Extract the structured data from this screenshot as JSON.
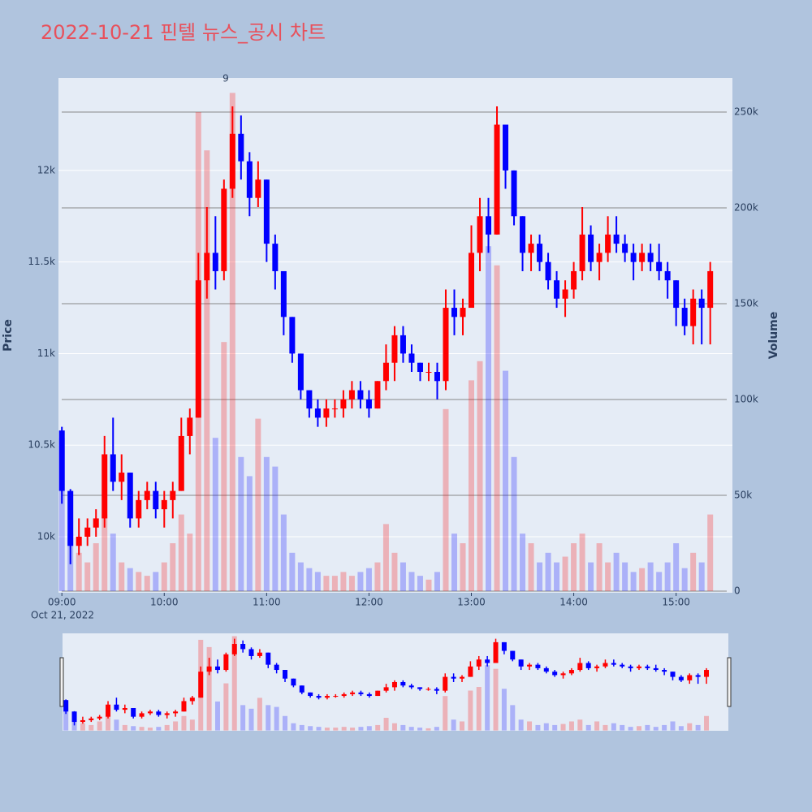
{
  "chart_data": {
    "type": "candlestick",
    "title": "2022-10-21 핀텔 뉴스_공시 차트",
    "y_title": "Price",
    "y2_title": "Volume",
    "x_date_label": "Oct 21, 2022",
    "increasing_color": "#ff0000",
    "decreasing_color": "#0000ff",
    "rangeslider": true,
    "x": [
      "2022-10-21 09:00",
      "2022-10-21 09:05",
      "2022-10-21 09:10",
      "2022-10-21 09:15",
      "2022-10-21 09:20",
      "2022-10-21 09:25",
      "2022-10-21 09:30",
      "2022-10-21 09:35",
      "2022-10-21 09:40",
      "2022-10-21 09:45",
      "2022-10-21 09:50",
      "2022-10-21 09:55",
      "2022-10-21 10:00",
      "2022-10-21 10:05",
      "2022-10-21 10:10",
      "2022-10-21 10:15",
      "2022-10-21 10:20",
      "2022-10-21 10:25",
      "2022-10-21 10:30",
      "2022-10-21 10:35",
      "2022-10-21 10:40",
      "2022-10-21 10:45",
      "2022-10-21 10:50",
      "2022-10-21 10:55",
      "2022-10-21 11:00",
      "2022-10-21 11:05",
      "2022-10-21 11:10",
      "2022-10-21 11:15",
      "2022-10-21 11:20",
      "2022-10-21 11:25",
      "2022-10-21 11:30",
      "2022-10-21 11:35",
      "2022-10-21 11:40",
      "2022-10-21 11:45",
      "2022-10-21 11:50",
      "2022-10-21 11:55",
      "2022-10-21 12:00",
      "2022-10-21 12:05",
      "2022-10-21 12:10",
      "2022-10-21 12:15",
      "2022-10-21 12:20",
      "2022-10-21 12:25",
      "2022-10-21 12:30",
      "2022-10-21 12:35",
      "2022-10-21 12:40",
      "2022-10-21 12:45",
      "2022-10-21 12:50",
      "2022-10-21 12:55",
      "2022-10-21 13:00",
      "2022-10-21 13:05",
      "2022-10-21 13:10",
      "2022-10-21 13:15",
      "2022-10-21 13:20",
      "2022-10-21 13:25",
      "2022-10-21 13:30",
      "2022-10-21 13:35",
      "2022-10-21 13:40",
      "2022-10-21 13:45",
      "2022-10-21 13:50",
      "2022-10-21 13:55",
      "2022-10-21 14:00",
      "2022-10-21 14:05",
      "2022-10-21 14:10",
      "2022-10-21 14:15",
      "2022-10-21 14:20",
      "2022-10-21 14:25",
      "2022-10-21 14:30",
      "2022-10-21 14:35",
      "2022-10-21 14:40",
      "2022-10-21 14:45",
      "2022-10-21 14:50",
      "2022-10-21 14:55",
      "2022-10-21 15:00",
      "2022-10-21 15:05",
      "2022-10-21 15:10",
      "2022-10-21 15:15",
      "2022-10-21 15:20"
    ],
    "open": [
      10580,
      10250,
      9950,
      10000,
      10050,
      10100,
      10450,
      10300,
      10350,
      10100,
      10200,
      10250,
      10150,
      10200,
      10250,
      10550,
      10650,
      11400,
      11550,
      11450,
      11900,
      12200,
      12050,
      11850,
      11950,
      11600,
      11450,
      11200,
      11000,
      10800,
      10700,
      10650,
      10700,
      10700,
      10750,
      10800,
      10750,
      10700,
      10850,
      10950,
      11100,
      11000,
      10950,
      10900,
      10900,
      10850,
      11250,
      11200,
      11250,
      11550,
      11750,
      11650,
      12250,
      12000,
      11750,
      11550,
      11600,
      11500,
      11400,
      11300,
      11350,
      11450,
      11650,
      11500,
      11550,
      11650,
      11600,
      11550,
      11500,
      11550,
      11500,
      11450,
      11400,
      11250,
      11150,
      11300,
      11250
    ],
    "high": [
      10600,
      10260,
      10100,
      10100,
      10150,
      10550,
      10650,
      10450,
      10350,
      10250,
      10300,
      10300,
      10250,
      10300,
      10650,
      10700,
      11550,
      11800,
      11750,
      11950,
      12350,
      12300,
      12100,
      12050,
      11950,
      11650,
      11450,
      11200,
      11000,
      10800,
      10750,
      10750,
      10750,
      10800,
      10850,
      10850,
      10800,
      10850,
      11050,
      11150,
      11150,
      11050,
      10950,
      10950,
      10950,
      11350,
      11350,
      11300,
      11700,
      11850,
      11850,
      12350,
      12250,
      12000,
      11750,
      11650,
      11650,
      11550,
      11450,
      11400,
      11500,
      11800,
      11700,
      11600,
      11750,
      11750,
      11650,
      11600,
      11600,
      11600,
      11600,
      11500,
      11400,
      11300,
      11350,
      11350,
      11500
    ],
    "low": [
      10180,
      9850,
      9900,
      9950,
      10000,
      10050,
      10250,
      10200,
      10050,
      10050,
      10150,
      10100,
      10050,
      10100,
      10250,
      10450,
      10650,
      11300,
      11350,
      11400,
      11850,
      11950,
      11750,
      11800,
      11500,
      11350,
      11100,
      10950,
      10750,
      10650,
      10600,
      10600,
      10650,
      10650,
      10700,
      10700,
      10650,
      10700,
      10800,
      10850,
      10950,
      10900,
      10850,
      10850,
      10750,
      10800,
      11100,
      11100,
      11250,
      11450,
      11550,
      11650,
      11900,
      11700,
      11450,
      11450,
      11450,
      11350,
      11250,
      11200,
      11300,
      11400,
      11450,
      11400,
      11500,
      11550,
      11500,
      11400,
      11450,
      11450,
      11400,
      11300,
      11150,
      11100,
      11050,
      11050,
      11050
    ],
    "close": [
      10250,
      9950,
      10000,
      10050,
      10100,
      10450,
      10300,
      10350,
      10100,
      10200,
      10250,
      10150,
      10200,
      10250,
      10550,
      10650,
      11400,
      11550,
      11450,
      11900,
      12200,
      12050,
      11850,
      11950,
      11600,
      11450,
      11200,
      11000,
      10800,
      10700,
      10650,
      10700,
      10700,
      10750,
      10800,
      10750,
      10700,
      10850,
      10950,
      11100,
      11000,
      10950,
      10900,
      10900,
      10850,
      11250,
      11200,
      11250,
      11550,
      11750,
      11650,
      12250,
      12000,
      11750,
      11550,
      11600,
      11500,
      11400,
      11300,
      11350,
      11450,
      11650,
      11500,
      11550,
      11650,
      11600,
      11550,
      11500,
      11550,
      11500,
      11450,
      11400,
      11250,
      11150,
      11300,
      11250,
      11450
    ],
    "volume": [
      80000,
      30000,
      20000,
      15000,
      25000,
      40000,
      30000,
      15000,
      12000,
      10000,
      8000,
      10000,
      15000,
      25000,
      40000,
      30000,
      250000,
      230000,
      80000,
      130000,
      260000,
      70000,
      60000,
      90000,
      70000,
      65000,
      40000,
      20000,
      15000,
      12000,
      10000,
      8000,
      8000,
      10000,
      8000,
      10000,
      12000,
      15000,
      35000,
      20000,
      15000,
      10000,
      8000,
      6000,
      10000,
      95000,
      30000,
      25000,
      110000,
      120000,
      180000,
      170000,
      115000,
      70000,
      30000,
      25000,
      15000,
      20000,
      15000,
      18000,
      25000,
      30000,
      15000,
      25000,
      15000,
      20000,
      15000,
      10000,
      12000,
      15000,
      10000,
      15000,
      25000,
      12000,
      20000,
      15000,
      40000
    ],
    "xlim": [
      "2022-10-21 08:58",
      "2022-10-21 15:33"
    ],
    "xticks": [
      {
        "value": "2022-10-21 09:00",
        "label": "09:00"
      },
      {
        "value": "2022-10-21 10:00",
        "label": "10:00"
      },
      {
        "value": "2022-10-21 11:00",
        "label": "11:00"
      },
      {
        "value": "2022-10-21 12:00",
        "label": "12:00"
      },
      {
        "value": "2022-10-21 13:00",
        "label": "13:00"
      },
      {
        "value": "2022-10-21 14:00",
        "label": "14:00"
      },
      {
        "value": "2022-10-21 15:00",
        "label": "15:00"
      }
    ],
    "ylim": [
      9694,
      12505
    ],
    "yticks": [
      {
        "value": 10000,
        "label": "10k"
      },
      {
        "value": 10500,
        "label": "10.5k"
      },
      {
        "value": 11000,
        "label": "11k"
      },
      {
        "value": 11500,
        "label": "11.5k"
      },
      {
        "value": 12000,
        "label": "12k"
      }
    ],
    "y2lim": [
      -850,
      267800
    ],
    "y2ticks": [
      0,
      {
        "value": 50000,
        "label": "50k"
      },
      {
        "value": 100000,
        "label": "100k"
      },
      {
        "value": 150000,
        "label": "150k"
      },
      {
        "value": 200000,
        "label": "200k"
      },
      {
        "value": 250000,
        "label": "250k"
      }
    ],
    "annotations": [
      {
        "text": "9",
        "x": "2022-10-21 10:36"
      }
    ]
  }
}
